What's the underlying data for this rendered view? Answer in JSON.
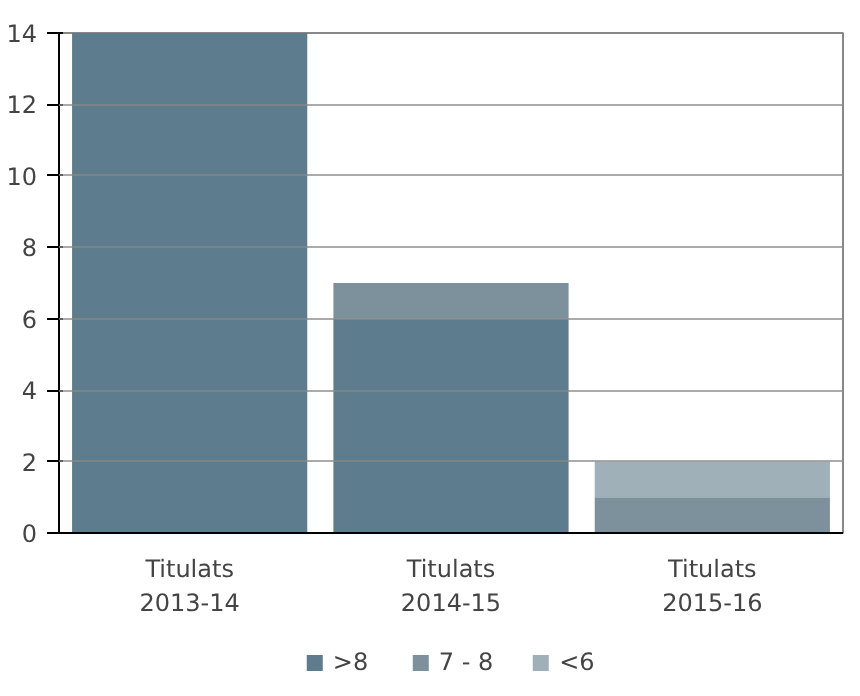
{
  "chart_data": {
    "type": "bar",
    "stacked": true,
    "categories": [
      "Titulats\n2013-14",
      "Titulats\n2014-15",
      "Titulats\n2015-16"
    ],
    "series": [
      {
        "name": ">8",
        "color": "#5d7d8e",
        "values": [
          14,
          6,
          0
        ]
      },
      {
        "name": "7 - 8",
        "color": "#7d919c",
        "values": [
          0,
          1,
          1
        ]
      },
      {
        "name": "<6",
        "color": "#a0b0b8",
        "values": [
          0,
          0,
          1
        ]
      }
    ],
    "ylim": [
      0,
      14
    ],
    "yticks": [
      0,
      2,
      4,
      6,
      8,
      10,
      12,
      14
    ],
    "grid": "y",
    "legend": "bottom"
  }
}
